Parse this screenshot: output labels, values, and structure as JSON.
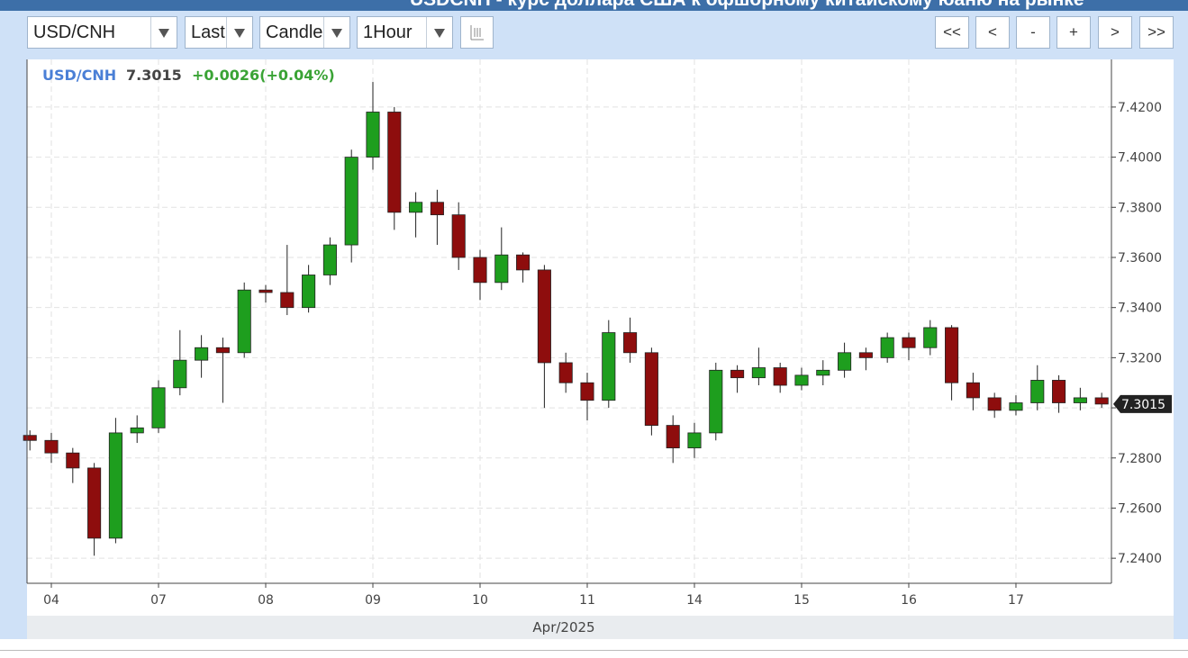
{
  "header": {
    "title": "USDCNH - курс доллара США к офшорному китайскому юаню на рынке"
  },
  "toolbar": {
    "symbol": "USD/CNH",
    "price_type": "Last",
    "chart_type": "Candle",
    "interval": "1Hour",
    "nav": [
      "<<",
      "<",
      "-",
      "+",
      ">",
      ">>"
    ]
  },
  "chart_data": {
    "type": "candlestick",
    "legend": {
      "symbol": "USD/CNH",
      "price": "7.3015",
      "change": "+0.0026(+0.04%)"
    },
    "x_label": "Apr/2025",
    "up_color": "#1e9e1e",
    "down_color": "#8e0d0d",
    "grid": true,
    "xlim": [
      -0.227,
      9.891
    ],
    "xticks": [
      {
        "value": 0,
        "label": "04"
      },
      {
        "value": 1,
        "label": "07"
      },
      {
        "value": 2,
        "label": "08"
      },
      {
        "value": 3,
        "label": "09"
      },
      {
        "value": 4,
        "label": "10"
      },
      {
        "value": 5,
        "label": "11"
      },
      {
        "value": 6,
        "label": "14"
      },
      {
        "value": 7,
        "label": "15"
      },
      {
        "value": 8,
        "label": "16"
      },
      {
        "value": 9,
        "label": "17"
      }
    ],
    "ylim": [
      7.23,
      7.439
    ],
    "yticks": [
      {
        "value": 7.24,
        "label": "7.2400"
      },
      {
        "value": 7.26,
        "label": "7.2600"
      },
      {
        "value": 7.28,
        "label": "7.2800"
      },
      {
        "value": 7.3,
        "label": "7.3000"
      },
      {
        "value": 7.32,
        "label": "7.3200"
      },
      {
        "value": 7.34,
        "label": "7.3400"
      },
      {
        "value": 7.36,
        "label": "7.3600"
      },
      {
        "value": 7.38,
        "label": "7.3800"
      },
      {
        "value": 7.4,
        "label": "7.4000"
      },
      {
        "value": 7.42,
        "label": "7.4200"
      }
    ],
    "x": [
      -0.2,
      0,
      0.2,
      0.4,
      0.6,
      0.8,
      1,
      1.2,
      1.4,
      1.6,
      1.8,
      2,
      2.2,
      2.4,
      2.6,
      2.8,
      3,
      3.2,
      3.4,
      3.6,
      3.8,
      4,
      4.2,
      4.4,
      4.6,
      4.8,
      5,
      5.2,
      5.4,
      5.6,
      5.8,
      6,
      6.2,
      6.4,
      6.6,
      6.8,
      7,
      7.2,
      7.4,
      7.6,
      7.8,
      8,
      8.2,
      8.4,
      8.6,
      8.8,
      9,
      9.2,
      9.4,
      9.6,
      9.8
    ],
    "open": [
      7.289,
      7.287,
      7.282,
      7.276,
      7.248,
      7.29,
      7.292,
      7.308,
      7.319,
      7.324,
      7.322,
      7.347,
      7.346,
      7.34,
      7.353,
      7.365,
      7.4,
      7.418,
      7.378,
      7.382,
      7.377,
      7.36,
      7.35,
      7.361,
      7.355,
      7.318,
      7.31,
      7.303,
      7.33,
      7.322,
      7.293,
      7.284,
      7.29,
      7.315,
      7.312,
      7.316,
      7.309,
      7.313,
      7.315,
      7.322,
      7.32,
      7.328,
      7.324,
      7.332,
      7.31,
      7.304,
      7.299,
      7.302,
      7.311,
      7.302,
      7.304
    ],
    "high": [
      7.291,
      7.29,
      7.284,
      7.278,
      7.296,
      7.297,
      7.311,
      7.331,
      7.329,
      7.328,
      7.35,
      7.349,
      7.365,
      7.357,
      7.368,
      7.403,
      7.43,
      7.42,
      7.386,
      7.387,
      7.382,
      7.363,
      7.372,
      7.362,
      7.357,
      7.322,
      7.314,
      7.335,
      7.336,
      7.324,
      7.297,
      7.294,
      7.318,
      7.317,
      7.324,
      7.318,
      7.316,
      7.319,
      7.326,
      7.324,
      7.33,
      7.33,
      7.335,
      7.333,
      7.314,
      7.306,
      7.305,
      7.317,
      7.313,
      7.308,
      7.306
    ],
    "low": [
      7.283,
      7.278,
      7.27,
      7.241,
      7.246,
      7.286,
      7.29,
      7.305,
      7.312,
      7.302,
      7.32,
      7.342,
      7.337,
      7.338,
      7.349,
      7.358,
      7.395,
      7.371,
      7.368,
      7.365,
      7.355,
      7.343,
      7.347,
      7.35,
      7.3,
      7.306,
      7.295,
      7.3,
      7.318,
      7.289,
      7.278,
      7.28,
      7.287,
      7.306,
      7.309,
      7.306,
      7.307,
      7.309,
      7.312,
      7.315,
      7.318,
      7.319,
      7.321,
      7.303,
      7.299,
      7.296,
      7.297,
      7.299,
      7.298,
      7.299,
      7.3
    ],
    "close": [
      7.287,
      7.282,
      7.276,
      7.248,
      7.29,
      7.292,
      7.308,
      7.319,
      7.324,
      7.322,
      7.347,
      7.346,
      7.34,
      7.353,
      7.365,
      7.4,
      7.418,
      7.378,
      7.382,
      7.377,
      7.36,
      7.35,
      7.361,
      7.355,
      7.318,
      7.31,
      7.303,
      7.33,
      7.322,
      7.293,
      7.284,
      7.29,
      7.315,
      7.312,
      7.316,
      7.309,
      7.313,
      7.315,
      7.322,
      7.32,
      7.328,
      7.324,
      7.332,
      7.31,
      7.304,
      7.299,
      7.302,
      7.311,
      7.302,
      7.304,
      7.3015
    ]
  }
}
